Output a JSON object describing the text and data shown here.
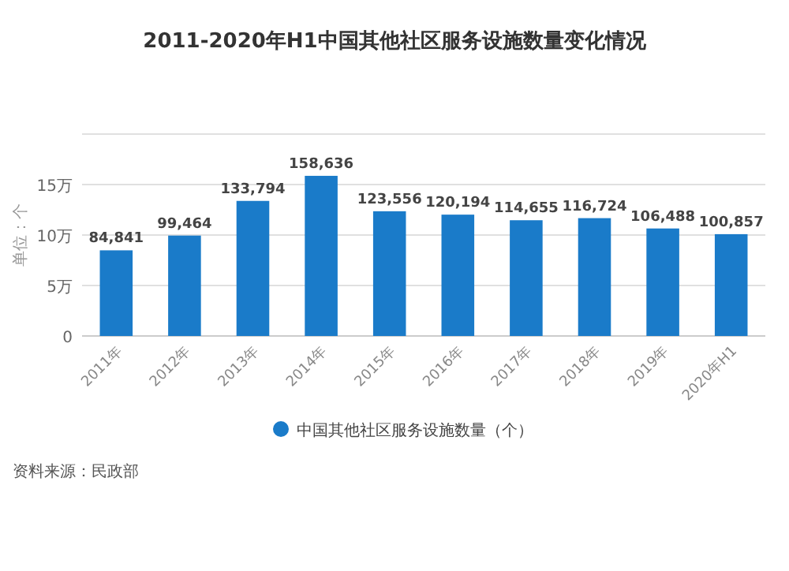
{
  "chart_data": {
    "type": "bar",
    "title": "2011-2020年H1中国其他社区服务设施数量变化情况",
    "ylabel": "单位：个",
    "categories": [
      "2011年",
      "2012年",
      "2013年",
      "2014年",
      "2015年",
      "2016年",
      "2017年",
      "2018年",
      "2019年",
      "2020年H1"
    ],
    "series": [
      {
        "name": "中国其他社区服务设施数量（个）",
        "color": "#1a7bc9",
        "values": [
          8.4841,
          9.9464,
          13.3794,
          15.8636,
          12.3556,
          12.0194,
          11.4655,
          11.6724,
          10.6488,
          10.0857
        ]
      }
    ],
    "ylim": [
      0,
      20
    ],
    "yticks": [
      0,
      {
        "value": 5,
        "label": "5万"
      },
      {
        "value": 10,
        "label": "10万"
      },
      {
        "value": 15,
        "label": "15万"
      },
      {
        "value": 20,
        "label": null
      }
    ],
    "value_labels": [
      "84,841",
      "99,464",
      "133,794",
      "158,636",
      "123,556",
      "120,194",
      "114,655",
      "116,724",
      "106,488",
      "100,857"
    ],
    "grid": "y",
    "legend": "bottom",
    "annotations": [
      "资料来源：民政部"
    ]
  }
}
